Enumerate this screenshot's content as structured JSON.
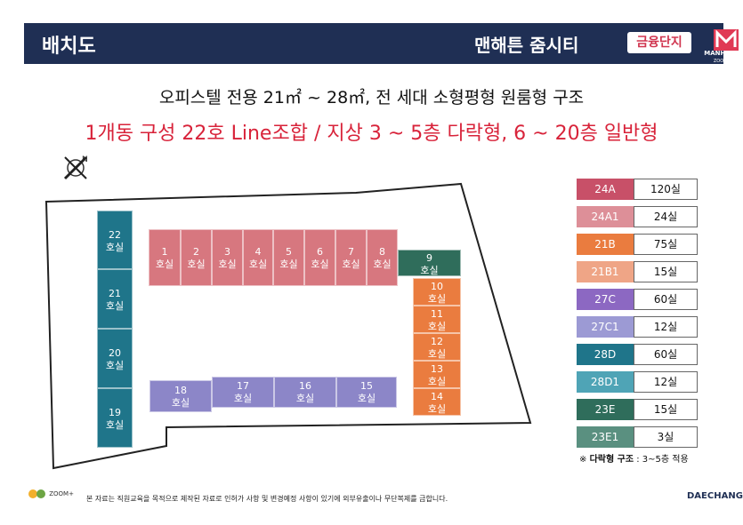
{
  "header": {
    "title": "배치도",
    "brand": "맨해튼 줌시티",
    "badge": "금융단지",
    "logo_text": "MANHATTAN",
    "logo_sub": "ZOOM CITY"
  },
  "subtitle1": "오피스텔 전용 21㎡ ~ 28㎡, 전 세대 소형평형 원룸형 구조",
  "subtitle2": "1개동 구성 22호 Line조합 / 지상 3 ~ 5층 다락형, 6 ~ 20층 일반형",
  "compass_label": "N",
  "units": {
    "u1": [
      "1",
      "호실"
    ],
    "u2": [
      "2",
      "호실"
    ],
    "u3": [
      "3",
      "호실"
    ],
    "u4": [
      "4",
      "호실"
    ],
    "u5": [
      "5",
      "호실"
    ],
    "u6": [
      "6",
      "호실"
    ],
    "u7": [
      "7",
      "호실"
    ],
    "u8": [
      "8",
      "호실"
    ],
    "u9": [
      "9",
      "호실"
    ],
    "u10": [
      "10",
      "호실"
    ],
    "u11": [
      "11",
      "호실"
    ],
    "u12": [
      "12",
      "호실"
    ],
    "u13": [
      "13",
      "호실"
    ],
    "u14": [
      "14",
      "호실"
    ],
    "u15": [
      "15",
      "호실"
    ],
    "u16": [
      "16",
      "호실"
    ],
    "u17": [
      "17",
      "호실"
    ],
    "u18": [
      "18",
      "호실"
    ],
    "u19": [
      "19",
      "호실"
    ],
    "u20": [
      "20",
      "호실"
    ],
    "u21": [
      "21",
      "호실"
    ],
    "u22": [
      "22",
      "호실"
    ]
  },
  "legend": [
    {
      "code": "24A",
      "count": "120실",
      "color": "#c85068"
    },
    {
      "code": "24A1",
      "count": "24실",
      "color": "#dd8f98"
    },
    {
      "code": "21B",
      "count": "75실",
      "color": "#ea7c3f"
    },
    {
      "code": "21B1",
      "count": "15실",
      "color": "#efa586"
    },
    {
      "code": "27C",
      "count": "60실",
      "color": "#8c68c2"
    },
    {
      "code": "27C1",
      "count": "12실",
      "color": "#9c9ad4"
    },
    {
      "code": "28D",
      "count": "60실",
      "color": "#1f758a"
    },
    {
      "code": "28D1",
      "count": "12실",
      "color": "#4fa4b6"
    },
    {
      "code": "23E",
      "count": "15실",
      "color": "#2f6d5b"
    },
    {
      "code": "23E1",
      "count": "3실",
      "color": "#5a9080"
    }
  ],
  "note": {
    "prefix": "※ ",
    "bold": "다락형 구조",
    "rest": " : 3~5층 적용"
  },
  "footer": "본 자료는 직원교육을 목적으로 제작된 자료로 인허가 사항 및 변경예정 사항이 있기에 외부유출이나 무단복제를 금합니다.",
  "zoom_logo": "ZOOM+",
  "daechang": "DAECHANG"
}
